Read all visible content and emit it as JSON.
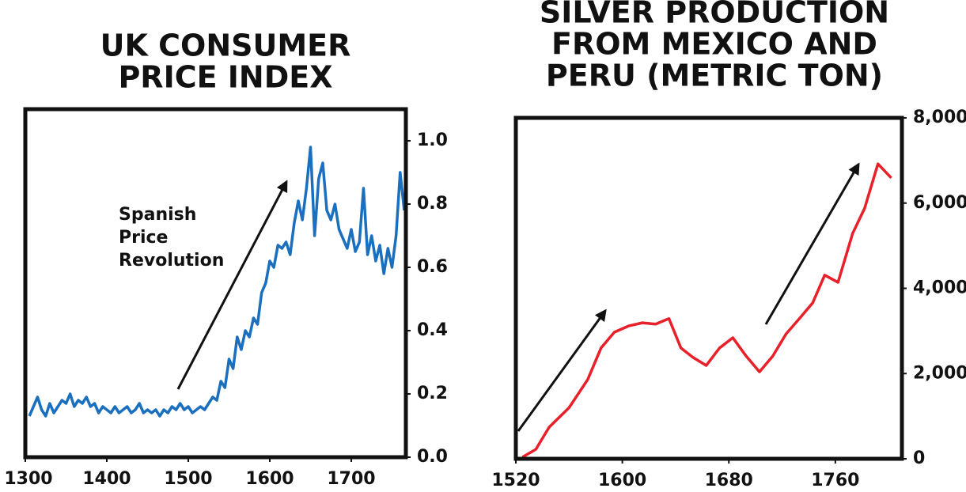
{
  "chart_data": [
    {
      "type": "line",
      "title": [
        "UK CONSUMER",
        "PRICE INDEX"
      ],
      "annotation": [
        "Spanish",
        "Price",
        "Revolution"
      ],
      "xlim": [
        1300,
        1767
      ],
      "xticks": [
        1300,
        1400,
        1500,
        1600,
        1700
      ],
      "ylim": [
        0,
        1.1
      ],
      "yticks": [
        {
          "value": 0,
          "label": "0.0"
        },
        0.2,
        0.4,
        0.6,
        0.8,
        {
          "value": 1,
          "label": "1.0"
        }
      ],
      "x": [
        1305,
        1310,
        1315,
        1320,
        1325,
        1330,
        1335,
        1340,
        1345,
        1350,
        1355,
        1360,
        1365,
        1370,
        1375,
        1380,
        1385,
        1390,
        1395,
        1400,
        1405,
        1410,
        1415,
        1420,
        1425,
        1430,
        1435,
        1440,
        1445,
        1450,
        1455,
        1460,
        1465,
        1470,
        1475,
        1480,
        1485,
        1490,
        1495,
        1500,
        1505,
        1510,
        1515,
        1520,
        1525,
        1530,
        1535,
        1540,
        1545,
        1550,
        1555,
        1560,
        1565,
        1570,
        1575,
        1580,
        1585,
        1590,
        1595,
        1600,
        1605,
        1610,
        1615,
        1620,
        1625,
        1630,
        1635,
        1640,
        1645,
        1650,
        1655,
        1660,
        1665,
        1670,
        1675,
        1680,
        1685,
        1690,
        1695,
        1700,
        1705,
        1710,
        1715,
        1720,
        1725,
        1730,
        1735,
        1740,
        1745,
        1750,
        1755,
        1760,
        1765
      ],
      "series": [
        {
          "color": "#1a6fbf",
          "values": [
            0.13,
            0.16,
            0.19,
            0.15,
            0.13,
            0.17,
            0.14,
            0.16,
            0.18,
            0.17,
            0.2,
            0.16,
            0.18,
            0.17,
            0.19,
            0.16,
            0.17,
            0.14,
            0.16,
            0.15,
            0.14,
            0.16,
            0.14,
            0.15,
            0.16,
            0.14,
            0.15,
            0.17,
            0.14,
            0.15,
            0.14,
            0.15,
            0.13,
            0.15,
            0.14,
            0.16,
            0.15,
            0.17,
            0.15,
            0.16,
            0.14,
            0.15,
            0.16,
            0.15,
            0.17,
            0.19,
            0.18,
            0.24,
            0.22,
            0.31,
            0.28,
            0.38,
            0.34,
            0.4,
            0.38,
            0.44,
            0.42,
            0.52,
            0.55,
            0.62,
            0.6,
            0.67,
            0.66,
            0.68,
            0.64,
            0.74,
            0.81,
            0.75,
            0.85,
            0.98,
            0.7,
            0.88,
            0.93,
            0.78,
            0.75,
            0.8,
            0.72,
            0.69,
            0.66,
            0.72,
            0.65,
            0.68,
            0.85,
            0.64,
            0.7,
            0.62,
            0.67,
            0.58,
            0.66,
            0.6,
            0.7,
            0.9,
            0.78
          ]
        }
      ]
    },
    {
      "type": "line",
      "title": [
        "SILVER PRODUCTION",
        "FROM MEXICO AND",
        "PERU (METRIC TON)"
      ],
      "xlim": [
        1520,
        1810
      ],
      "xticks": [
        1520,
        1600,
        1680,
        1760
      ],
      "ylim": [
        0,
        8000
      ],
      "yticks": [
        0,
        {
          "value": 2000,
          "label": "2,000"
        },
        {
          "value": 4000,
          "label": "4,000"
        },
        {
          "value": 6000,
          "label": "6,000"
        },
        {
          "value": 8000,
          "label": "8,000"
        }
      ],
      "x": [
        1525,
        1535,
        1545,
        1560,
        1574,
        1584,
        1594,
        1605,
        1615,
        1625,
        1635,
        1644,
        1653,
        1663,
        1673,
        1683,
        1693,
        1703,
        1713,
        1723,
        1733,
        1743,
        1752,
        1762,
        1773,
        1782,
        1792,
        1802
      ],
      "series": [
        {
          "color": "#e8202a",
          "values": [
            40,
            220,
            740,
            1200,
            1860,
            2600,
            2970,
            3120,
            3190,
            3160,
            3290,
            2600,
            2380,
            2190,
            2600,
            2840,
            2410,
            2040,
            2410,
            2930,
            3290,
            3660,
            4310,
            4140,
            5290,
            5880,
            6920,
            6590
          ]
        }
      ]
    }
  ]
}
